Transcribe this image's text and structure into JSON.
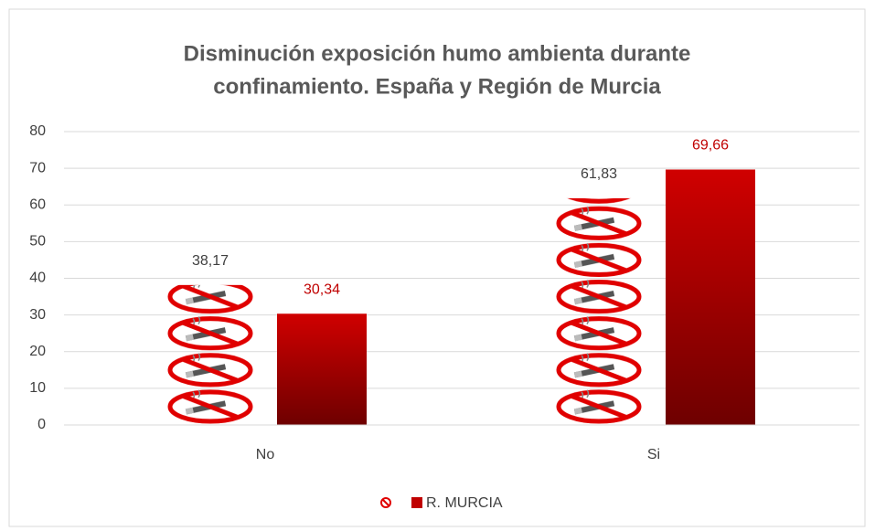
{
  "chart_data": {
    "type": "bar",
    "title": [
      "Disminución exposición humo ambienta durante",
      "confinamiento. España y Región de Murcia"
    ],
    "categories": [
      "No",
      "Si"
    ],
    "series": [
      {
        "color": "#e00000",
        "values": [
          38.17,
          61.83
        ],
        "value_labels": [
          "38,17",
          "61,83"
        ],
        "label_color": "#404040",
        "pictogram": true
      },
      {
        "name": "R. MURCIA",
        "color": "#c00000",
        "values": [
          30.34,
          69.66
        ],
        "value_labels": [
          "30,34",
          "69,66"
        ],
        "label_color": "#c00000"
      }
    ],
    "ylim": [
      0,
      80
    ],
    "yticks": [
      0,
      10,
      20,
      30,
      40,
      50,
      60,
      70,
      80
    ],
    "grid": true,
    "legend": "bottom"
  }
}
